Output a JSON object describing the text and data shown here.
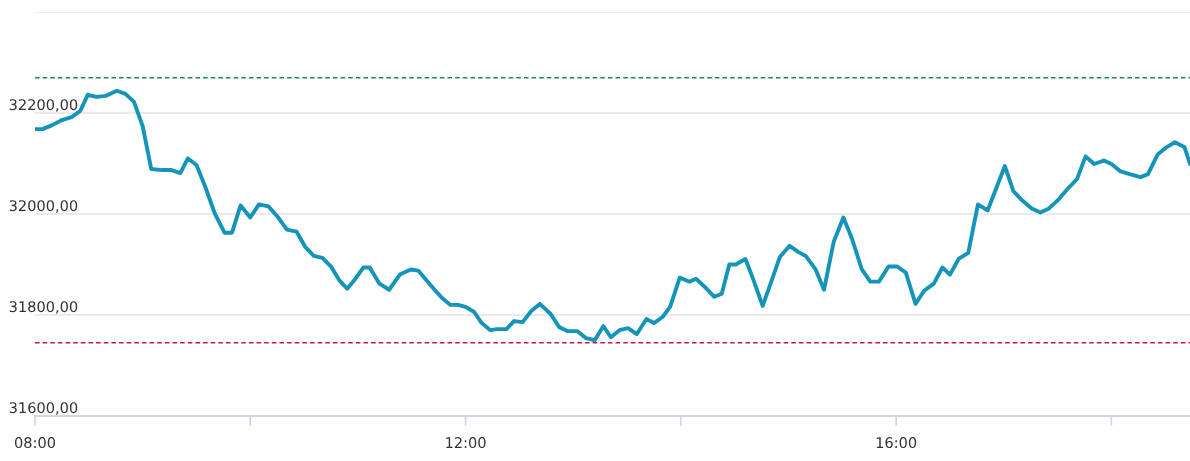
{
  "chart_data": {
    "type": "line",
    "x": [
      8.0,
      8.07,
      8.16,
      8.25,
      8.34,
      8.42,
      8.49,
      8.57,
      8.66,
      8.76,
      8.84,
      8.92,
      9.0,
      9.08,
      9.18,
      9.27,
      9.35,
      9.42,
      9.5,
      9.58,
      9.67,
      9.76,
      9.83,
      9.91,
      10.0,
      10.08,
      10.17,
      10.26,
      10.34,
      10.43,
      10.51,
      10.59,
      10.67,
      10.75,
      10.83,
      10.9,
      10.97,
      11.05,
      11.11,
      11.2,
      11.29,
      11.39,
      11.49,
      11.56,
      11.64,
      11.72,
      11.79,
      11.86,
      11.93,
      12.0,
      12.08,
      12.15,
      12.23,
      12.29,
      12.38,
      12.45,
      12.53,
      12.61,
      12.69,
      12.79,
      12.87,
      12.95,
      13.04,
      13.12,
      13.2,
      13.28,
      13.35,
      13.43,
      13.51,
      13.59,
      13.68,
      13.75,
      13.83,
      13.9,
      13.99,
      14.08,
      14.14,
      14.24,
      14.31,
      14.38,
      14.45,
      14.51,
      14.6,
      14.67,
      14.76,
      14.84,
      14.92,
      15.01,
      15.09,
      15.16,
      15.25,
      15.33,
      15.42,
      15.51,
      15.59,
      15.68,
      15.76,
      15.84,
      15.93,
      16.01,
      16.09,
      16.18,
      16.26,
      16.35,
      16.43,
      16.5,
      16.58,
      16.67,
      16.76,
      16.85,
      16.93,
      17.01,
      17.09,
      17.17,
      17.26,
      17.34,
      17.42,
      17.51,
      17.59,
      17.68,
      17.76,
      17.84,
      17.93,
      18.0,
      18.08,
      18.17,
      18.27,
      18.34,
      18.43,
      18.51,
      18.59,
      18.68,
      18.73
    ],
    "series": [
      {
        "color": "#1494b8",
        "values": [
          32168,
          32168,
          32176,
          32186,
          32192,
          32204,
          32236,
          32232,
          32234,
          32244,
          32238,
          32222,
          32174,
          32089,
          32087,
          32087,
          32081,
          32110,
          32097,
          32055,
          32001,
          31963,
          31963,
          32017,
          31993,
          32019,
          32015,
          31993,
          31969,
          31965,
          31935,
          31917,
          31913,
          31896,
          31868,
          31852,
          31870,
          31894,
          31894,
          31862,
          31850,
          31880,
          31890,
          31888,
          31868,
          31848,
          31832,
          31820,
          31820,
          31816,
          31806,
          31784,
          31770,
          31772,
          31772,
          31788,
          31786,
          31808,
          31822,
          31802,
          31776,
          31768,
          31768,
          31754,
          31750,
          31778,
          31756,
          31770,
          31774,
          31762,
          31792,
          31784,
          31796,
          31816,
          31874,
          31866,
          31872,
          31852,
          31836,
          31842,
          31900,
          31900,
          31911,
          31872,
          31818,
          31866,
          31915,
          31937,
          31925,
          31917,
          31891,
          31850,
          31945,
          31993,
          31951,
          31891,
          31866,
          31866,
          31896,
          31896,
          31884,
          31822,
          31848,
          31862,
          31894,
          31880,
          31911,
          31923,
          32019,
          32007,
          32051,
          32095,
          32045,
          32027,
          32011,
          32003,
          32011,
          32029,
          32049,
          32069,
          32114,
          32099,
          32106,
          32099,
          32085,
          32079,
          32073,
          32079,
          32118,
          32132,
          32142,
          32132,
          32099
        ]
      }
    ],
    "xlim": [
      8,
      18.73
    ],
    "xticks": [
      {
        "value": 8,
        "label": "08:00"
      },
      {
        "value": 10,
        "label": null
      },
      {
        "value": 12,
        "label": "12:00"
      },
      {
        "value": 14,
        "label": null
      },
      {
        "value": 16,
        "label": "16:00"
      },
      {
        "value": 18,
        "label": null
      }
    ],
    "ylim": [
      31600,
      32400
    ],
    "yticks": [
      {
        "value": 31600,
        "label": "31600,00"
      },
      {
        "value": 31800,
        "label": "31800,00"
      },
      {
        "value": 32000,
        "label": "32000,00"
      },
      {
        "value": 32200,
        "label": "32200,00"
      },
      {
        "value": 32400,
        "label": null
      }
    ],
    "ref_lines": [
      {
        "axis": "y",
        "value": 32270,
        "color": "#138a6e",
        "line_style": "dashed"
      },
      {
        "axis": "y",
        "value": 31745,
        "color": "#c8174f",
        "line_style": "dashed"
      }
    ],
    "grid": "y",
    "legend": false,
    "marker": "none",
    "line_style": "solid"
  }
}
